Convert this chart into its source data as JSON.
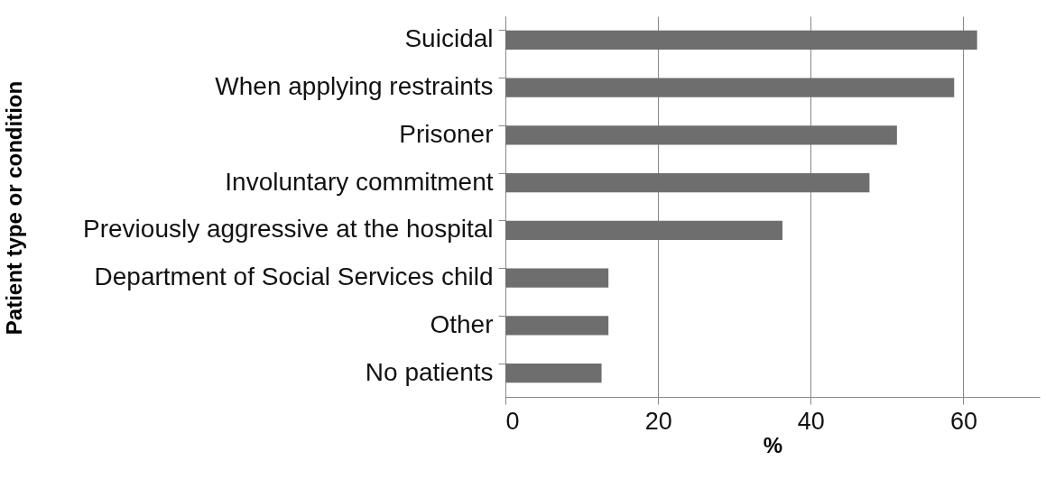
{
  "chart_data": {
    "type": "bar",
    "orientation": "horizontal",
    "xlabel": "%",
    "ylabel": "Patient type or condition",
    "categories": [
      "Suicidal",
      "When applying restraints",
      "Prisoner",
      "Involuntary commitment",
      "Previously aggressive at the hospital",
      "Department of Social Services child",
      "Other",
      "No patients"
    ],
    "values": [
      61.8,
      58.8,
      51.3,
      47.7,
      36.3,
      13.5,
      13.5,
      12.6
    ],
    "color": "#6e6e6e",
    "xlim": [
      0,
      70
    ],
    "xticks": [
      0,
      20,
      40,
      60
    ],
    "grid": "x"
  }
}
